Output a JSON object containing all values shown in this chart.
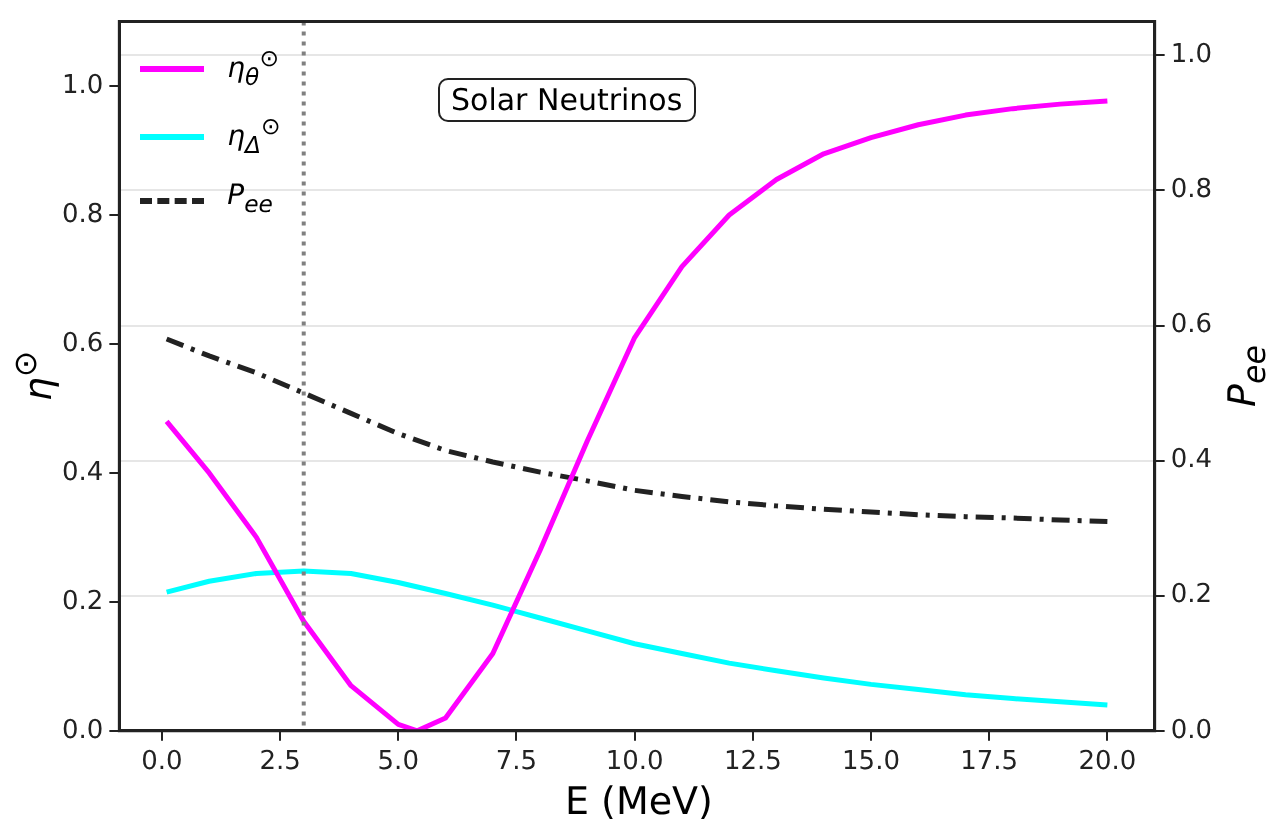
{
  "chart_data": {
    "type": "line",
    "xlabel": "E (MeV)",
    "ylabel": "η$^{⊙}$",
    "y2label": "P$_{ee}$",
    "annotations": [
      "Solar Neutrinos"
    ],
    "xlim": [
      -0.9,
      21
    ],
    "xticks": [
      {
        "value": 0,
        "label": "0.0"
      },
      {
        "value": 2.5,
        "label": "2.5"
      },
      {
        "value": 5,
        "label": "5.0"
      },
      {
        "value": 7.5,
        "label": "7.5"
      },
      {
        "value": 10,
        "label": "10.0"
      },
      {
        "value": 12.5,
        "label": "12.5"
      },
      {
        "value": 15,
        "label": "15.0"
      },
      {
        "value": 17.5,
        "label": "17.5"
      },
      {
        "value": 20,
        "label": "20.0"
      }
    ],
    "ylim": [
      0,
      1.1
    ],
    "yticks": [
      {
        "value": 0,
        "label": "0.0"
      },
      {
        "value": 0.2,
        "label": "0.2"
      },
      {
        "value": 0.4,
        "label": "0.4"
      },
      {
        "value": 0.6,
        "label": "0.6"
      },
      {
        "value": 0.8,
        "label": "0.8"
      },
      {
        "value": 1,
        "label": "1.0"
      }
    ],
    "y2lim": [
      0,
      1.05
    ],
    "y2ticks": [
      {
        "value": 0,
        "label": "0.0"
      },
      {
        "value": 0.2,
        "label": "0.2"
      },
      {
        "value": 0.4,
        "label": "0.4"
      },
      {
        "value": 0.6,
        "label": "0.6"
      },
      {
        "value": 0.8,
        "label": "0.8"
      },
      {
        "value": 1,
        "label": "1.0"
      }
    ],
    "grid": "y",
    "legend": "top left",
    "marker": "none",
    "ref_lines": [
      {
        "axis": "x",
        "value": 3,
        "color": "#808080",
        "line_style": "dotted"
      }
    ],
    "series": [
      {
        "name": "η$_{θ}$$^{⊙}$",
        "color": "#ff00ff",
        "line_style": "solid",
        "x": [
          0.1,
          1,
          2,
          3,
          4,
          5,
          5.4,
          6,
          7,
          8,
          9,
          10,
          11,
          12,
          13,
          14,
          15,
          16,
          17,
          18,
          19,
          20
        ],
        "values": [
          0.48,
          0.4,
          0.3,
          0.17,
          0.07,
          0.01,
          0,
          0.02,
          0.12,
          0.28,
          0.45,
          0.61,
          0.72,
          0.8,
          0.855,
          0.895,
          0.92,
          0.94,
          0.955,
          0.965,
          0.972,
          0.977
        ]
      },
      {
        "name": "η$_{Δ}$$^{⊙}$",
        "color": "#00ffff",
        "line_style": "solid",
        "x": [
          0.1,
          1,
          2,
          3,
          4,
          5,
          6,
          7,
          8,
          9,
          10,
          11,
          12,
          13,
          14,
          15,
          16,
          17,
          18,
          19,
          20
        ],
        "values": [
          0.215,
          0.232,
          0.244,
          0.248,
          0.244,
          0.23,
          0.213,
          0.195,
          0.175,
          0.155,
          0.135,
          0.12,
          0.105,
          0.093,
          0.082,
          0.072,
          0.064,
          0.056,
          0.05,
          0.045,
          0.04
        ]
      },
      {
        "name": "P$_{ee}$",
        "color": "#222222",
        "line_style": "dashed",
        "axis": "y2",
        "x": [
          0.1,
          1,
          2,
          3,
          4,
          5,
          6,
          7,
          8,
          9,
          10,
          11,
          12,
          13,
          14,
          15,
          16,
          17,
          18,
          19,
          20
        ],
        "values": [
          0.58,
          0.555,
          0.53,
          0.5,
          0.47,
          0.44,
          0.415,
          0.398,
          0.383,
          0.37,
          0.356,
          0.347,
          0.339,
          0.333,
          0.328,
          0.324,
          0.32,
          0.317,
          0.315,
          0.312,
          0.31
        ]
      }
    ]
  }
}
